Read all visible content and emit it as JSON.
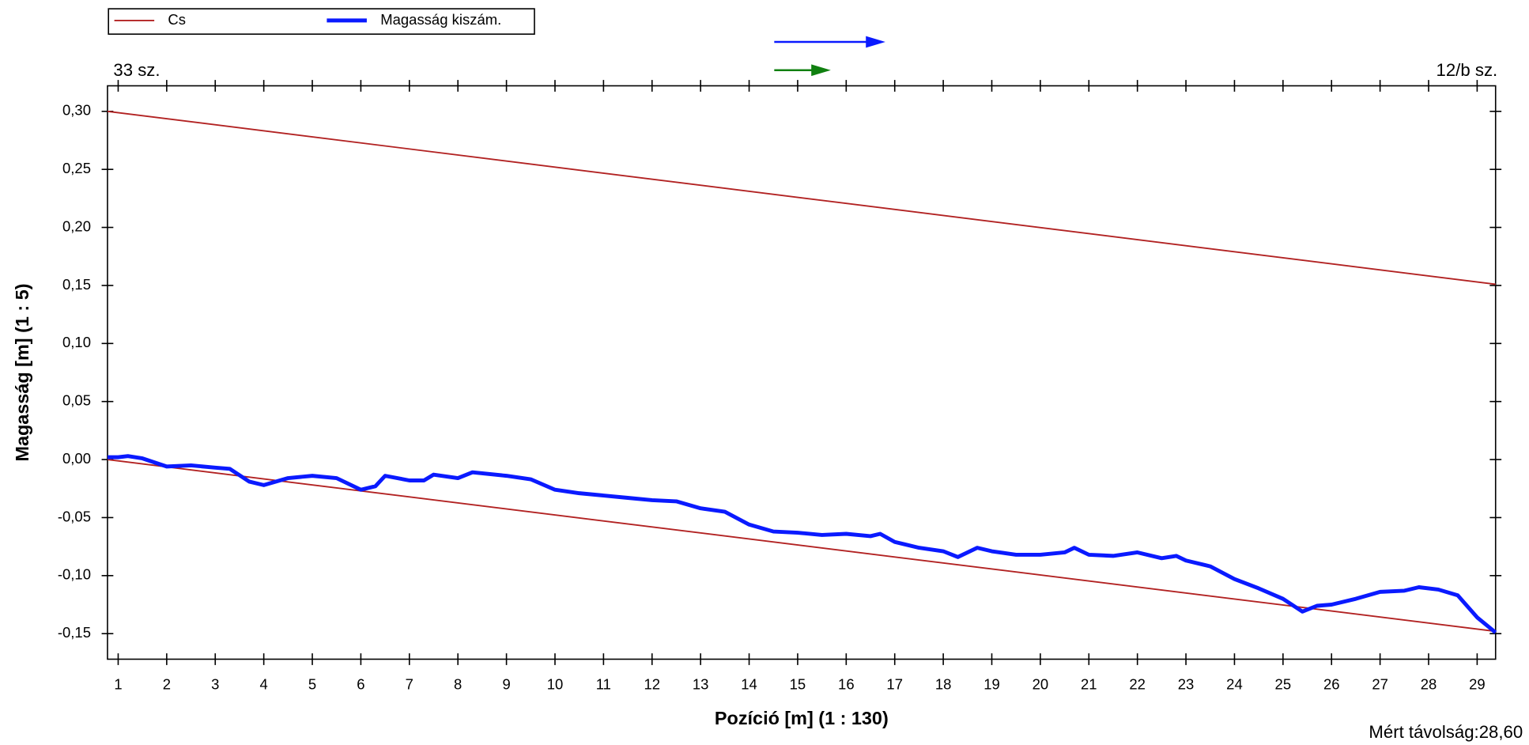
{
  "chart_data": {
    "type": "line",
    "x_label": "Pozíció [m] (1 : 130)",
    "y_label": "Magasság [m] (1 : 5)",
    "left_label": "33 sz.",
    "right_label": "12/b sz.",
    "footer": "Mért  távolság:28,60",
    "legend": "top-left",
    "xlim": [
      0.78,
      29.38
    ],
    "ylim": [
      -0.172,
      0.322
    ],
    "xticks": [
      1,
      2,
      3,
      4,
      5,
      6,
      7,
      8,
      9,
      10,
      11,
      12,
      13,
      14,
      15,
      16,
      17,
      18,
      19,
      20,
      21,
      22,
      23,
      24,
      25,
      26,
      27,
      28,
      29
    ],
    "yticks": [
      {
        "value": -0.15,
        "label": "-0,15"
      },
      {
        "value": -0.1,
        "label": "-0,10"
      },
      {
        "value": -0.05,
        "label": "-0,05"
      },
      {
        "value": 0,
        "label": "0,00"
      },
      {
        "value": 0.05,
        "label": "0,05"
      },
      {
        "value": 0.1,
        "label": "0,10"
      },
      {
        "value": 0.15,
        "label": "0,15"
      },
      {
        "value": 0.2,
        "label": "0,20"
      },
      {
        "value": 0.25,
        "label": "0,25"
      },
      {
        "value": 0.3,
        "label": "0,30"
      }
    ],
    "series": [
      {
        "name": "Cs",
        "color": "#b22222",
        "width": 1.5,
        "segments": [
          {
            "x": [
              0.78,
              29.38
            ],
            "values": [
              0.3,
              0.151
            ]
          },
          {
            "x": [
              0.78,
              29.38
            ],
            "values": [
              0.0,
              -0.148
            ]
          }
        ]
      },
      {
        "name": "Magasság  kiszám.",
        "color": "#0a1aff",
        "width": 4,
        "segments": [
          {
            "x": [
              0.78,
              1,
              1.2,
              1.5,
              2,
              2.5,
              3,
              3.3,
              3.7,
              4,
              4.5,
              5,
              5.5,
              6,
              6.3,
              6.5,
              7,
              7.3,
              7.5,
              8,
              8.3,
              9,
              9.5,
              10,
              10.5,
              11,
              11.5,
              12,
              12.5,
              13,
              13.5,
              14,
              14.5,
              15,
              15.5,
              16,
              16.5,
              16.7,
              17,
              17.5,
              18,
              18.3,
              18.7,
              19,
              19.5,
              20,
              20.5,
              20.7,
              21,
              21.5,
              22,
              22.5,
              22.8,
              23,
              23.5,
              24,
              24.5,
              25,
              25.4,
              25.7,
              26,
              26.5,
              27,
              27.5,
              27.8,
              28.2,
              28.6,
              29,
              29.38
            ],
            "values": [
              0.002,
              0.002,
              0.003,
              0.001,
              -0.006,
              -0.005,
              -0.007,
              -0.008,
              -0.019,
              -0.022,
              -0.016,
              -0.014,
              -0.016,
              -0.026,
              -0.023,
              -0.014,
              -0.018,
              -0.018,
              -0.013,
              -0.016,
              -0.011,
              -0.014,
              -0.017,
              -0.026,
              -0.029,
              -0.031,
              -0.033,
              -0.035,
              -0.036,
              -0.042,
              -0.045,
              -0.056,
              -0.062,
              -0.063,
              -0.065,
              -0.064,
              -0.066,
              -0.064,
              -0.071,
              -0.076,
              -0.079,
              -0.084,
              -0.076,
              -0.079,
              -0.082,
              -0.082,
              -0.08,
              -0.076,
              -0.082,
              -0.083,
              -0.08,
              -0.085,
              -0.083,
              -0.087,
              -0.092,
              -0.103,
              -0.111,
              -0.12,
              -0.131,
              -0.126,
              -0.125,
              -0.12,
              -0.114,
              -0.113,
              -0.11,
              -0.112,
              -0.117,
              -0.136,
              -0.149
            ]
          }
        ]
      }
    ]
  }
}
